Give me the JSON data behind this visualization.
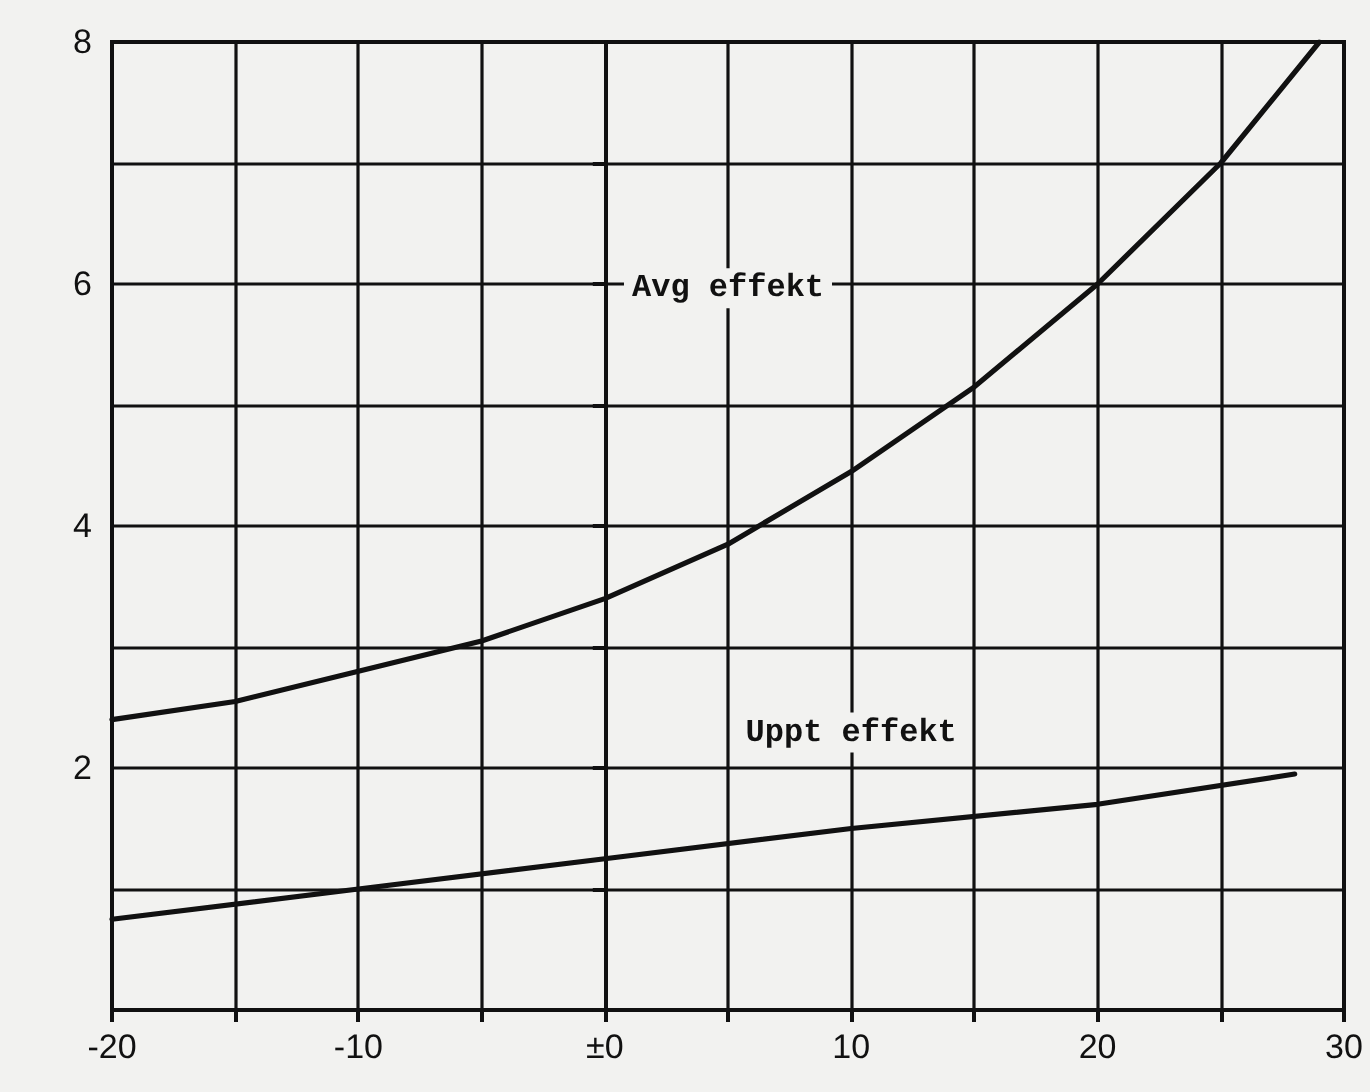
{
  "chart_data": {
    "type": "line",
    "xlim": [
      -20,
      30
    ],
    "ylim": [
      0,
      8
    ],
    "xticks": [
      {
        "value": -20,
        "label": "-20"
      },
      {
        "value": -15,
        "label": null
      },
      {
        "value": -10,
        "label": "-10"
      },
      {
        "value": -5,
        "label": null
      },
      {
        "value": 0,
        "label": "±0"
      },
      {
        "value": 5,
        "label": null
      },
      {
        "value": 10,
        "label": "10"
      },
      {
        "value": 15,
        "label": null
      },
      {
        "value": 20,
        "label": "20"
      },
      {
        "value": 25,
        "label": null
      },
      {
        "value": 30,
        "label": "30"
      }
    ],
    "yticks": [
      {
        "value": 0,
        "label": null
      },
      {
        "value": 1,
        "label": null
      },
      2,
      {
        "value": 3,
        "label": null
      },
      4,
      {
        "value": 5,
        "label": null
      },
      6,
      {
        "value": 7,
        "label": null
      },
      8
    ],
    "grid": true,
    "marker": "none",
    "line_style": "solid",
    "series": [
      {
        "name": "Avg effekt",
        "color": "#111111",
        "x": [
          -20,
          -15,
          -10,
          -5,
          0,
          5,
          10,
          15,
          20,
          25,
          29
        ],
        "values": [
          2.4,
          2.55,
          2.8,
          3.05,
          3.4,
          3.85,
          4.45,
          5.15,
          6.0,
          7.0,
          8.0
        ]
      },
      {
        "name": "Uppt effekt",
        "color": "#111111",
        "x": [
          -20,
          -10,
          0,
          10,
          20,
          28
        ],
        "values": [
          0.75,
          1.0,
          1.25,
          1.5,
          1.7,
          1.95
        ]
      }
    ]
  }
}
